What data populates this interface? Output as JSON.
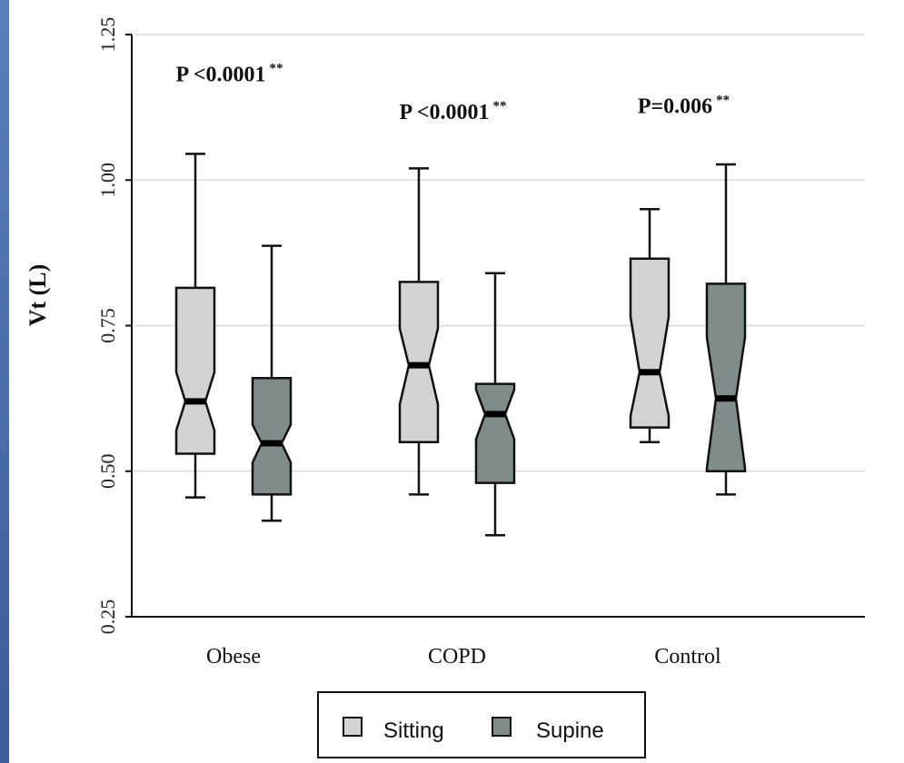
{
  "chart_data": {
    "type": "box",
    "ylabel": "Vt  (L)",
    "xlabel": "",
    "ylim": [
      0.25,
      1.25
    ],
    "yticks": [
      "0.25",
      "0.50",
      "0.75",
      "1.00",
      "1.25"
    ],
    "grid": true,
    "categories": [
      "Obese",
      "COPD",
      "Control"
    ],
    "series": [
      {
        "name": "Sitting",
        "color": "#d3d3d3",
        "boxes": [
          {
            "category": "Obese",
            "min": 0.455,
            "q1": 0.53,
            "median": 0.62,
            "q3": 0.815,
            "max": 1.045,
            "notch_low": 0.57,
            "notch_high": 0.67
          },
          {
            "category": "COPD",
            "min": 0.46,
            "q1": 0.55,
            "median": 0.682,
            "q3": 0.825,
            "max": 1.02,
            "notch_low": 0.615,
            "notch_high": 0.745
          },
          {
            "category": "Control",
            "min": 0.55,
            "q1": 0.575,
            "median": 0.67,
            "q3": 0.865,
            "max": 0.95,
            "notch_low": 0.595,
            "notch_high": 0.765
          }
        ]
      },
      {
        "name": "Supine",
        "color": "#7f8c8a",
        "boxes": [
          {
            "category": "Obese",
            "min": 0.415,
            "q1": 0.46,
            "median": 0.548,
            "q3": 0.66,
            "max": 0.887,
            "notch_low": 0.515,
            "notch_high": 0.58
          },
          {
            "category": "COPD",
            "min": 0.39,
            "q1": 0.48,
            "median": 0.598,
            "q3": 0.65,
            "max": 0.84,
            "notch_low": 0.555,
            "notch_high": 0.64
          },
          {
            "category": "Control",
            "min": 0.46,
            "q1": 0.5,
            "median": 0.625,
            "q3": 0.822,
            "max": 1.027,
            "notch_low": 0.505,
            "notch_high": 0.73
          }
        ]
      }
    ],
    "annotations": [
      {
        "category": "Obese",
        "text": "P <0.0001",
        "stars": "**",
        "y": 1.17
      },
      {
        "category": "COPD",
        "text": "P <0.0001",
        "stars": "**",
        "y": 1.105
      },
      {
        "category": "Control",
        "text": "P=0.006",
        "stars": "**",
        "y": 1.115
      }
    ],
    "legend": {
      "placement": "bottom-center",
      "entries": [
        {
          "label": "Sitting",
          "color": "#d3d3d3"
        },
        {
          "label": "Supine",
          "color": "#7f8c8a"
        }
      ]
    }
  }
}
